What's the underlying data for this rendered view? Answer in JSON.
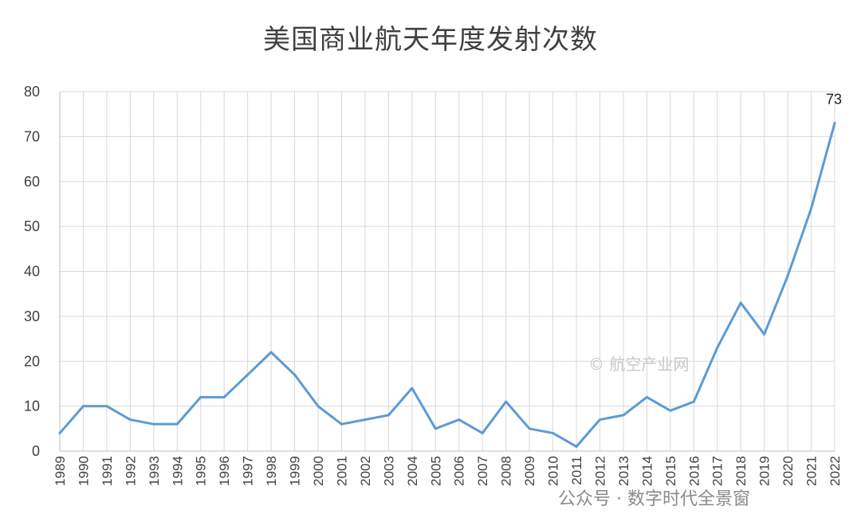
{
  "chart_data": {
    "type": "line",
    "title": "美国商业航天年度发射次数",
    "xlabel": "",
    "ylabel": "",
    "x": [
      "1989",
      "1990",
      "1991",
      "1992",
      "1993",
      "1994",
      "1995",
      "1996",
      "1997",
      "1998",
      "1999",
      "2000",
      "2001",
      "2002",
      "2003",
      "2004",
      "2005",
      "2006",
      "2007",
      "2008",
      "2009",
      "2010",
      "2011",
      "2012",
      "2013",
      "2014",
      "2015",
      "2016",
      "2017",
      "2018",
      "2019",
      "2020",
      "2021",
      "2022"
    ],
    "series": [
      {
        "values": [
          4,
          10,
          10,
          7,
          6,
          6,
          12,
          12,
          17,
          22,
          17,
          10,
          6,
          7,
          8,
          14,
          5,
          7,
          4,
          11,
          5,
          4,
          1,
          7,
          8,
          12,
          9,
          11,
          23,
          33,
          26,
          39,
          54,
          73
        ],
        "color": "#5b9bd5"
      }
    ],
    "ylim": [
      0,
      80
    ],
    "yticks": [
      0,
      10,
      20,
      30,
      40,
      50,
      60,
      70,
      80
    ],
    "grid": true,
    "legend": "none",
    "data_labels": [
      {
        "index": 33,
        "text": "73"
      }
    ]
  },
  "watermarks": {
    "source": "© 航空产业网",
    "account": "公众号 · 数字时代全景窗"
  },
  "colors": {
    "line": "#5b9bd5",
    "grid": "#d9d9d9",
    "text": "#404040"
  }
}
